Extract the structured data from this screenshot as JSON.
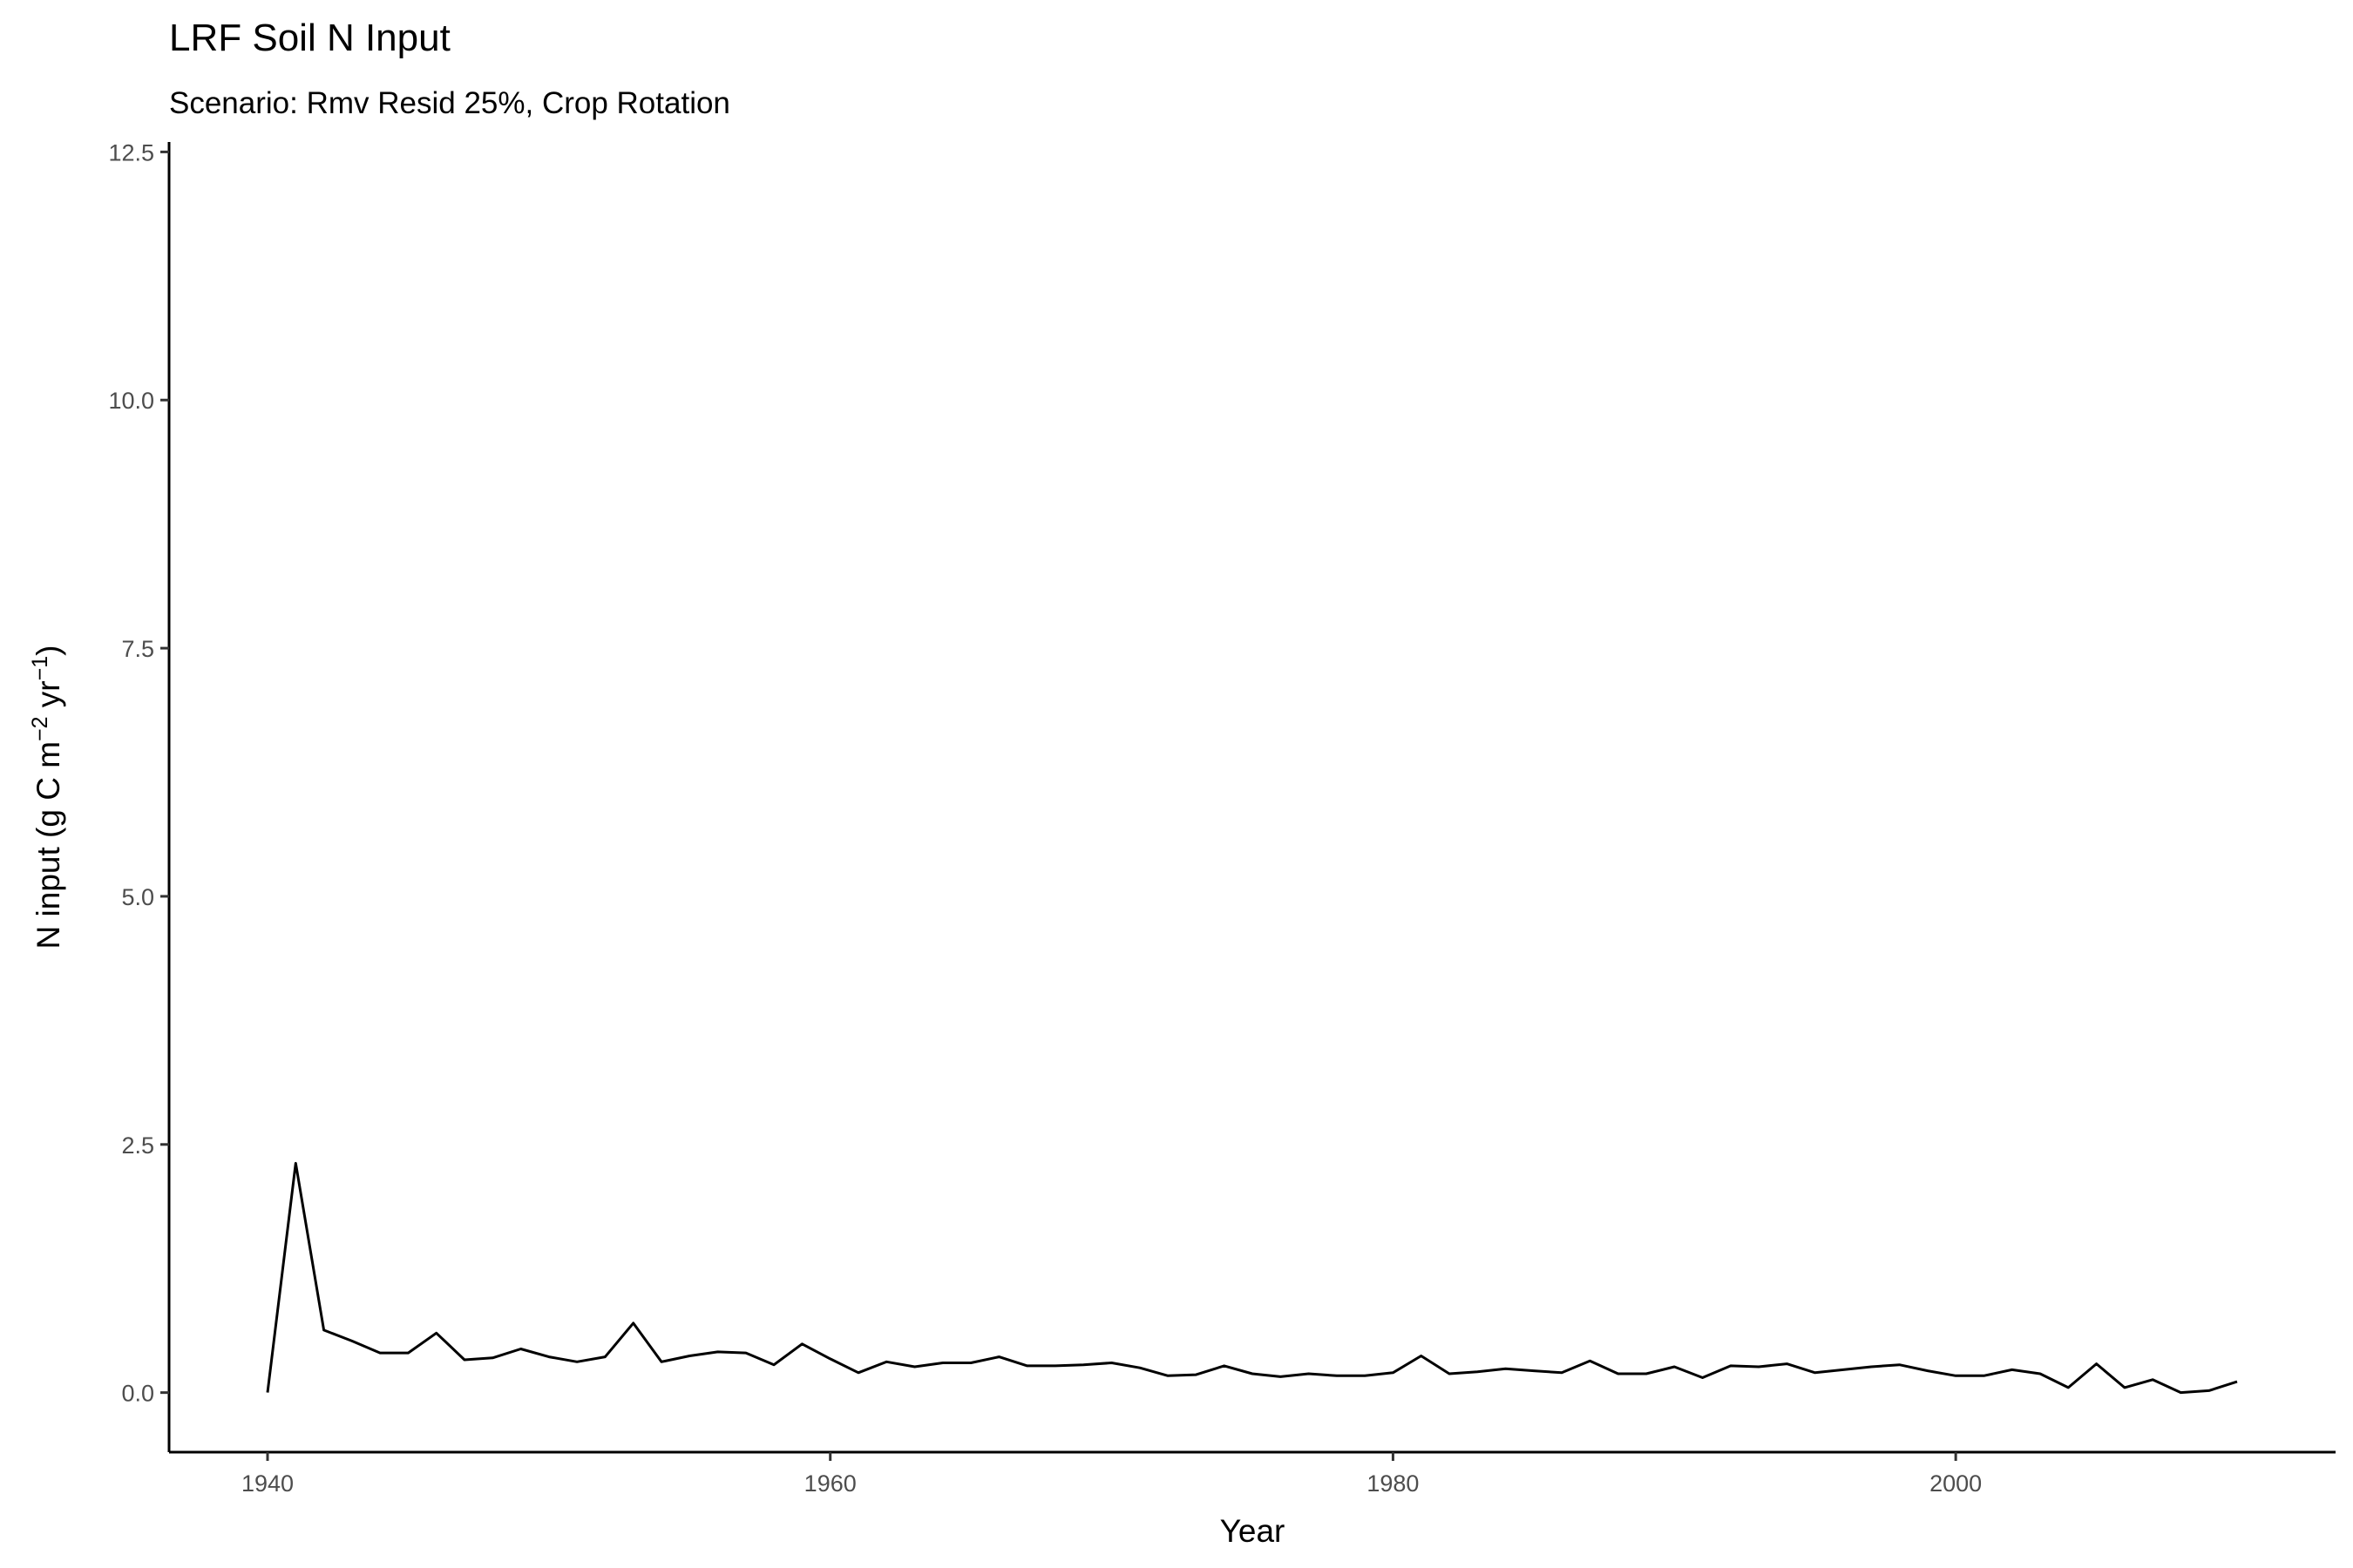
{
  "chart_data": {
    "type": "line",
    "title": "LRF Soil N Input",
    "subtitle": "Scenario: Rmv Resid 25%, Crop Rotation",
    "xlabel": "Year",
    "ylabel_parts": [
      "N input (g C m",
      "−2",
      " yr",
      "−1",
      ")"
    ],
    "xlim": [
      1936.5,
      2013.5
    ],
    "ylim": [
      -0.6,
      12.6
    ],
    "x_ticks": [
      1940,
      1960,
      1980,
      2000
    ],
    "x_tick_labels": [
      "1940",
      "1960",
      "1980",
      "2000"
    ],
    "y_ticks": [
      0.0,
      2.5,
      5.0,
      7.5,
      10.0,
      12.5
    ],
    "y_tick_labels": [
      "0.0",
      "2.5",
      "5.0",
      "7.5",
      "10.0",
      "12.5"
    ],
    "grid": false,
    "line_color": "#000000",
    "series": [
      {
        "x": [
          1940,
          1941,
          1942,
          1943,
          1944,
          1945,
          1946,
          1947,
          1948,
          1949,
          1950,
          1951,
          1952,
          1953,
          1954,
          1955,
          1956,
          1957,
          1958,
          1959,
          1960,
          1961,
          1962,
          1963,
          1964,
          1965,
          1966,
          1967,
          1968,
          1969,
          1970,
          1971,
          1972,
          1973,
          1974,
          1975,
          1976,
          1977,
          1978,
          1979,
          1980,
          1981,
          1982,
          1983,
          1984,
          1985,
          1986,
          1987,
          1988,
          1989,
          1990,
          1991,
          1992,
          1993,
          1994,
          1995,
          1996,
          1997,
          1998,
          1999,
          2000,
          2001,
          2002,
          2003,
          2004,
          2005,
          2006,
          2007,
          2008,
          2009,
          2010
        ],
        "values": [
          0.0,
          2.31,
          0.63,
          0.52,
          0.4,
          0.4,
          0.6,
          0.33,
          0.35,
          0.44,
          0.36,
          0.31,
          0.36,
          0.7,
          0.31,
          0.37,
          0.41,
          0.4,
          0.28,
          0.49,
          0.34,
          0.2,
          0.31,
          0.26,
          0.3,
          0.3,
          0.36,
          0.27,
          0.27,
          0.28,
          0.3,
          0.25,
          0.17,
          0.18,
          0.27,
          0.19,
          0.16,
          0.19,
          0.17,
          0.17,
          0.2,
          0.37,
          0.19,
          0.21,
          0.24,
          0.22,
          0.2,
          0.32,
          0.19,
          0.19,
          0.26,
          0.15,
          0.27,
          0.26,
          0.29,
          0.2,
          0.23,
          0.26,
          0.28,
          0.22,
          0.17,
          0.17,
          0.23,
          0.19,
          0.05,
          0.29,
          0.05,
          0.13,
          0.0,
          0.02,
          0.11
        ]
      }
    ]
  }
}
